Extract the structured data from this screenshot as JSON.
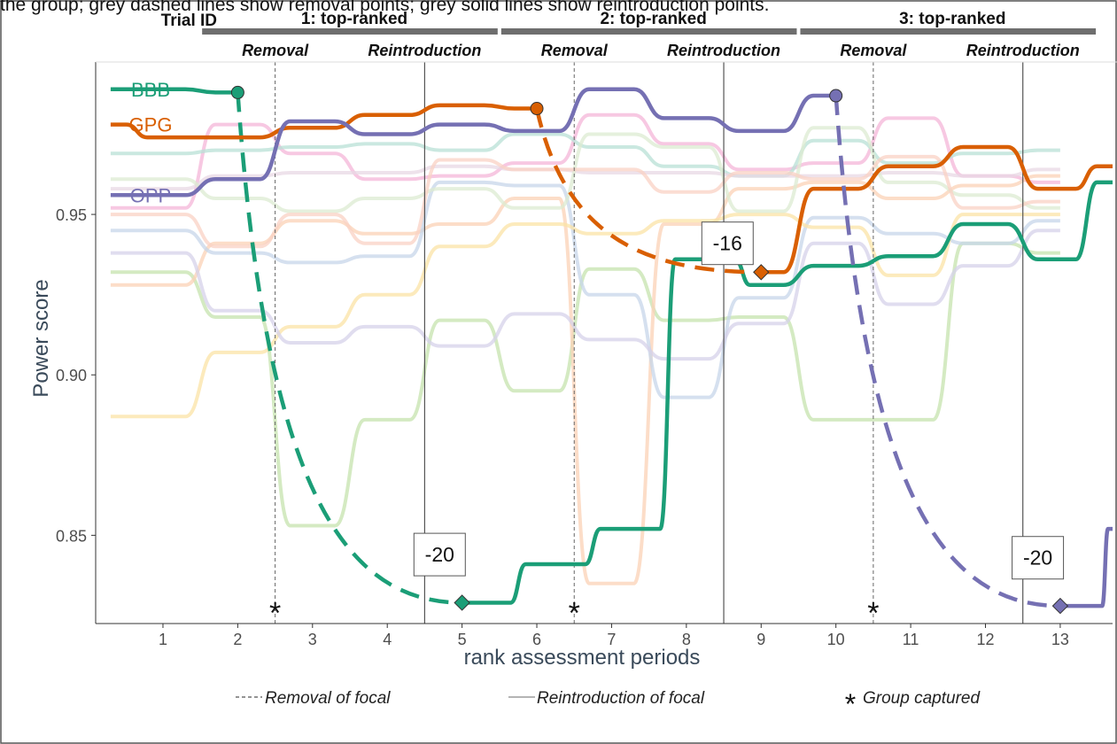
{
  "caption_top": "the group; grey dashed lines show removal points; grey solid lines show reintroduction points.",
  "chart_data": {
    "type": "line",
    "title": "",
    "xlabel": "rank assessment periods",
    "ylabel": "Power score",
    "xlim": [
      0.1,
      13.7
    ],
    "ylim": [
      0.8225,
      0.9975
    ],
    "xticks": [
      1,
      2,
      3,
      4,
      5,
      6,
      7,
      8,
      9,
      10,
      11,
      12,
      13
    ],
    "yticks": [
      0.85,
      0.9,
      0.95
    ],
    "ytick_labels": [
      "0.85",
      "0.90",
      "0.95"
    ],
    "grid": false,
    "trial_header": {
      "label": "Trial ID",
      "trials": [
        {
          "label": "1: top-ranked",
          "x_start": 1.5,
          "x_end": 5.5,
          "phases": [
            "Removal",
            "Reintroduction"
          ]
        },
        {
          "label": "2: top-ranked",
          "x_start": 5.5,
          "x_end": 9.5,
          "phases": [
            "Removal",
            "Reintroduction"
          ]
        },
        {
          "label": "3: top-ranked",
          "x_start": 9.5,
          "x_end": 13.5,
          "phases": [
            "Removal",
            "Reintroduction"
          ]
        }
      ]
    },
    "removal_lines": [
      2.5,
      6.5,
      10.5
    ],
    "reintroduction_lines": [
      4.5,
      8.5,
      12.5
    ],
    "group_captured": [
      2.5,
      6.5,
      10.5
    ],
    "captured_y": 0.8265,
    "series": [
      {
        "name": "BBB",
        "color": "#1b9e77",
        "x": [
          0.3,
          1,
          2
        ],
        "y": [
          0.989,
          0.989,
          0.988
        ],
        "x2": [
          5,
          5.5,
          6,
          6.5,
          7,
          7.5,
          8,
          8.5,
          9,
          10,
          11,
          12,
          13,
          13.7
        ],
        "y2": [
          0.829,
          0.829,
          0.841,
          0.841,
          0.852,
          0.852,
          0.936,
          0.936,
          0.928,
          0.934,
          0.937,
          0.947,
          0.936,
          0.96
        ],
        "drop_from": [
          2,
          0.988
        ],
        "drop_to": [
          5,
          0.829
        ],
        "drop_label": "-20",
        "drop_label_at": [
          4.7,
          0.844
        ]
      },
      {
        "name": "GPG",
        "color": "#d95f02",
        "x": [
          0.3,
          1,
          2,
          3,
          4,
          5,
          6
        ],
        "y": [
          0.978,
          0.974,
          0.974,
          0.977,
          0.981,
          0.984,
          0.983
        ],
        "x2": [
          9,
          10,
          11,
          12,
          13,
          13.7
        ],
        "y2": [
          0.932,
          0.958,
          0.965,
          0.971,
          0.958,
          0.965
        ],
        "drop_from": [
          6,
          0.983
        ],
        "drop_to": [
          9,
          0.932
        ],
        "drop_label": "-16",
        "drop_label_at": [
          8.55,
          0.941
        ]
      },
      {
        "name": "OPP",
        "color": "#7570b3",
        "x": [
          0.3,
          1,
          2,
          3,
          4,
          5,
          6,
          7,
          8,
          9,
          10
        ],
        "y": [
          0.956,
          0.956,
          0.961,
          0.979,
          0.975,
          0.978,
          0.976,
          0.989,
          0.98,
          0.976,
          0.987
        ],
        "x2": [
          13,
          13.5,
          13.7
        ],
        "y2": [
          0.828,
          0.828,
          0.852
        ],
        "drop_from": [
          10,
          0.987
        ],
        "drop_to": [
          13,
          0.828
        ],
        "drop_label": "-20",
        "drop_label_at": [
          12.7,
          0.843
        ]
      }
    ],
    "background_series": [
      {
        "color": "#f4b6d8",
        "y": [
          0.952,
          0.952,
          0.978,
          0.969,
          0.961,
          0.962,
          0.966,
          0.981,
          0.972,
          0.964,
          0.966,
          0.98,
          0.962,
          0.96
        ]
      },
      {
        "color": "#c5e3ae",
        "y": [
          0.932,
          0.932,
          0.918,
          0.853,
          0.886,
          0.917,
          0.895,
          0.933,
          0.917,
          0.918,
          0.886,
          0.886,
          0.941,
          0.938
        ]
      },
      {
        "color": "#fbd1b6",
        "y": [
          0.928,
          0.928,
          0.941,
          0.948,
          0.944,
          0.947,
          0.955,
          0.835,
          0.947,
          0.958,
          0.96,
          0.955,
          0.959,
          0.962
        ]
      },
      {
        "color": "#c7d6ea",
        "y": [
          0.945,
          0.945,
          0.938,
          0.935,
          0.937,
          0.96,
          0.959,
          0.925,
          0.893,
          0.924,
          0.949,
          0.944,
          0.941,
          0.948
        ]
      },
      {
        "color": "#b8e0d6",
        "y": [
          0.969,
          0.969,
          0.97,
          0.971,
          0.972,
          0.97,
          0.975,
          0.971,
          0.965,
          0.962,
          0.973,
          0.966,
          0.969,
          0.97
        ]
      },
      {
        "color": "#fbe3a5",
        "y": [
          0.887,
          0.887,
          0.907,
          0.915,
          0.925,
          0.94,
          0.947,
          0.944,
          0.948,
          0.95,
          0.946,
          0.931,
          0.95,
          0.95
        ]
      },
      {
        "color": "#d6d2ea",
        "y": [
          0.938,
          0.938,
          0.92,
          0.91,
          0.915,
          0.909,
          0.919,
          0.911,
          0.905,
          0.916,
          0.941,
          0.922,
          0.934,
          0.945
        ]
      },
      {
        "color": "#e8d8e4",
        "y": [
          0.958,
          0.958,
          0.962,
          0.963,
          0.963,
          0.965,
          0.964,
          0.963,
          0.963,
          0.962,
          0.962,
          0.963,
          0.962,
          0.964
        ]
      },
      {
        "color": "#dcebd2",
        "y": [
          0.961,
          0.961,
          0.955,
          0.951,
          0.955,
          0.958,
          0.952,
          0.975,
          0.971,
          0.951,
          0.977,
          0.96,
          0.956,
          0.952
        ]
      },
      {
        "color": "#f9d2c4",
        "y": [
          0.95,
          0.95,
          0.94,
          0.95,
          0.941,
          0.967,
          0.964,
          0.964,
          0.957,
          0.963,
          0.961,
          0.968,
          0.952,
          0.954
        ]
      }
    ],
    "legend": [
      {
        "label": "Removal of focal",
        "style": "dashed"
      },
      {
        "label": "Reintroduction of focal",
        "style": "solid"
      },
      {
        "label": "Group captured",
        "style": "asterisk"
      }
    ]
  }
}
